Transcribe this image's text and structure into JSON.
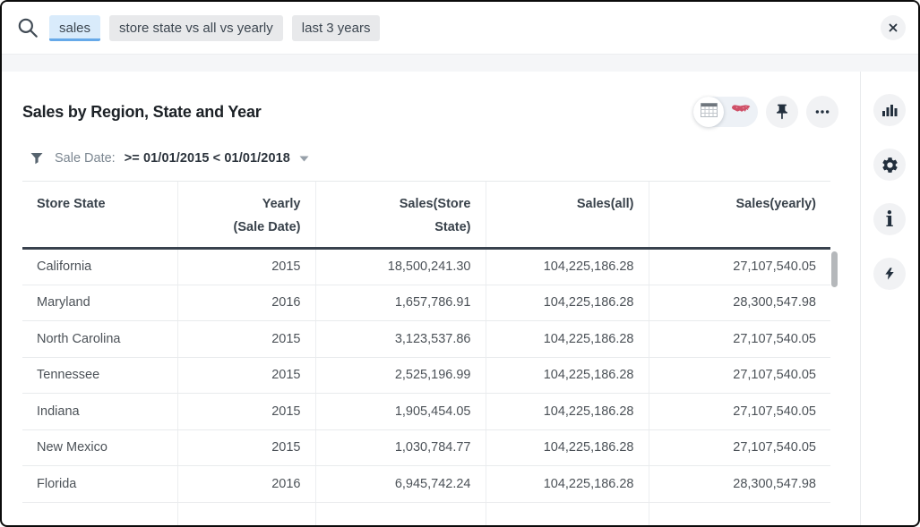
{
  "search": {
    "tokens": [
      {
        "text": "sales",
        "active": true
      },
      {
        "text": "store state vs all vs yearly",
        "active": false
      },
      {
        "text": "last 3 years",
        "active": false
      }
    ]
  },
  "answer": {
    "title": "Sales by Region, State and Year",
    "filter": {
      "label": "Sale Date:",
      "value": ">= 01/01/2015 < 01/01/2018"
    }
  },
  "viz_controls": {
    "toggle": {
      "selected": "table-view",
      "options": [
        "table-view",
        "map-view"
      ]
    },
    "icons": [
      "table-grid-icon",
      "us-map-icon",
      "pin-icon",
      "more-ellipsis-icon"
    ]
  },
  "sidebar_icons": [
    "bar-chart-icon",
    "gear-icon",
    "info-icon",
    "lightning-icon"
  ],
  "table": {
    "columns": [
      {
        "line1": "Store State",
        "line2": "",
        "align": "left"
      },
      {
        "line1": "Yearly",
        "line2": "(Sale Date)",
        "align": "right"
      },
      {
        "line1": "Sales(Store",
        "line2": "State)",
        "align": "right"
      },
      {
        "line1": "Sales(all)",
        "line2": "",
        "align": "right"
      },
      {
        "line1": "Sales(yearly)",
        "line2": "",
        "align": "right"
      }
    ],
    "rows": [
      [
        "California",
        "2015",
        "18,500,241.30",
        "104,225,186.28",
        "27,107,540.05"
      ],
      [
        "Maryland",
        "2016",
        "1,657,786.91",
        "104,225,186.28",
        "28,300,547.98"
      ],
      [
        "North Carolina",
        "2015",
        "3,123,537.86",
        "104,225,186.28",
        "27,107,540.05"
      ],
      [
        "Tennessee",
        "2015",
        "2,525,196.99",
        "104,225,186.28",
        "27,107,540.05"
      ],
      [
        "Indiana",
        "2015",
        "1,905,454.05",
        "104,225,186.28",
        "27,107,540.05"
      ],
      [
        "New Mexico",
        "2015",
        "1,030,784.77",
        "104,225,186.28",
        "27,107,540.05"
      ],
      [
        "Florida",
        "2016",
        "6,945,742.24",
        "104,225,186.28",
        "28,300,547.98"
      ]
    ]
  },
  "colors": {
    "token_active_bg": "#d9ebfb",
    "token_active_underline": "#66a9e9",
    "token_gray_bg": "#e8e9eb",
    "header_rule": "#39424e",
    "map_pink": "#cf5068"
  }
}
